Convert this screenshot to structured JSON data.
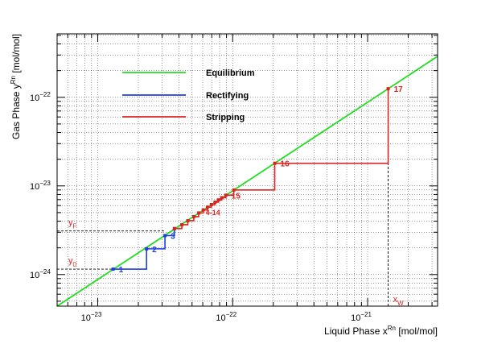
{
  "chart_data": {
    "type": "line",
    "xlabel_main": "Liquid Phase x",
    "xlabel_sup": "Rn",
    "xlabel_unit": " [mol/mol]",
    "ylabel_main": "Gas Phase y",
    "ylabel_sup": "Rn",
    "ylabel_unit": " [mol/mol]",
    "x_scale": "log",
    "y_scale": "log",
    "xlim": [
      5e-24,
      3.3e-21
    ],
    "ylim": [
      4.4e-25,
      5.2e-22
    ],
    "grid": true,
    "x_ticks": [
      {
        "value": 1e-23,
        "base": "10",
        "exp": "−23"
      },
      {
        "value": 1e-22,
        "base": "10",
        "exp": "−22"
      },
      {
        "value": 1e-21,
        "base": "10",
        "exp": "−21"
      }
    ],
    "y_ticks": [
      {
        "value": 1e-24,
        "base": "10",
        "exp": "−24"
      },
      {
        "value": 1e-23,
        "base": "10",
        "exp": "−23"
      },
      {
        "value": 1e-22,
        "base": "10",
        "exp": "−22"
      }
    ],
    "legend_position": "top-left",
    "series": [
      {
        "name": "Equilibrium",
        "color": "#22dd22",
        "style": "line",
        "x": [
          5e-24,
          3.3e-21
        ],
        "y": [
          4.4e-25,
          2.9e-22
        ]
      },
      {
        "name": "Rectifying",
        "color": "#1f3fdd",
        "style": "staircase",
        "points": [
          {
            "x": 1.3e-23,
            "y": 1.15e-24,
            "label": "1"
          },
          {
            "x": 2.3e-23,
            "y": 1.95e-24,
            "label": "2"
          },
          {
            "x": 3.15e-23,
            "y": 2.75e-24,
            "label": "3"
          },
          {
            "x": 3.7e-23,
            "y": 3.3e-24,
            "label": ""
          }
        ]
      },
      {
        "name": "Stripping",
        "color": "#dd2222",
        "style": "staircase",
        "points": [
          {
            "x": 3.7e-23,
            "y": 3.3e-24,
            "label": ""
          },
          {
            "x": 4.2e-23,
            "y": 3.65e-24,
            "label": ""
          },
          {
            "x": 4.65e-23,
            "y": 4.05e-24,
            "label": ""
          },
          {
            "x": 5.15e-23,
            "y": 4.5e-24,
            "label": ""
          },
          {
            "x": 5.6e-23,
            "y": 4.95e-24,
            "label": ""
          },
          {
            "x": 6.05e-23,
            "y": 5.35e-24,
            "label": ""
          },
          {
            "x": 6.5e-23,
            "y": 5.75e-24,
            "label": ""
          },
          {
            "x": 6.95e-23,
            "y": 6.15e-24,
            "label": ""
          },
          {
            "x": 7.4e-23,
            "y": 6.55e-24,
            "label": ""
          },
          {
            "x": 7.85e-23,
            "y": 6.95e-24,
            "label": ""
          },
          {
            "x": 8.3e-23,
            "y": 7.35e-24,
            "label": ""
          },
          {
            "x": 8.9e-23,
            "y": 7.85e-24,
            "label": "15"
          },
          {
            "x": 1.02e-22,
            "y": 9e-24,
            "label": ""
          },
          {
            "x": 2.05e-22,
            "y": 1.8e-23,
            "label": "16"
          },
          {
            "x": 1.42e-21,
            "y": 1.25e-22,
            "label": "17"
          }
        ]
      }
    ],
    "stage_range_label": "4-14",
    "stage_range_at": {
      "x": 6.3e-23,
      "y": 5e-24
    },
    "annotations": {
      "yF": {
        "main": "y",
        "sub": "F",
        "x_from": 5e-24,
        "x_to": 3.15e-23,
        "y": 3.1e-24
      },
      "y0": {
        "main": "y",
        "sub": "0",
        "x_from": 5e-24,
        "x_to": 1.3e-23,
        "y": 1.15e-24
      },
      "xw": {
        "main": "x",
        "sub": "W",
        "x": 1.42e-21,
        "y_from": 4.4e-25,
        "y_to": 1.25e-22
      }
    }
  }
}
